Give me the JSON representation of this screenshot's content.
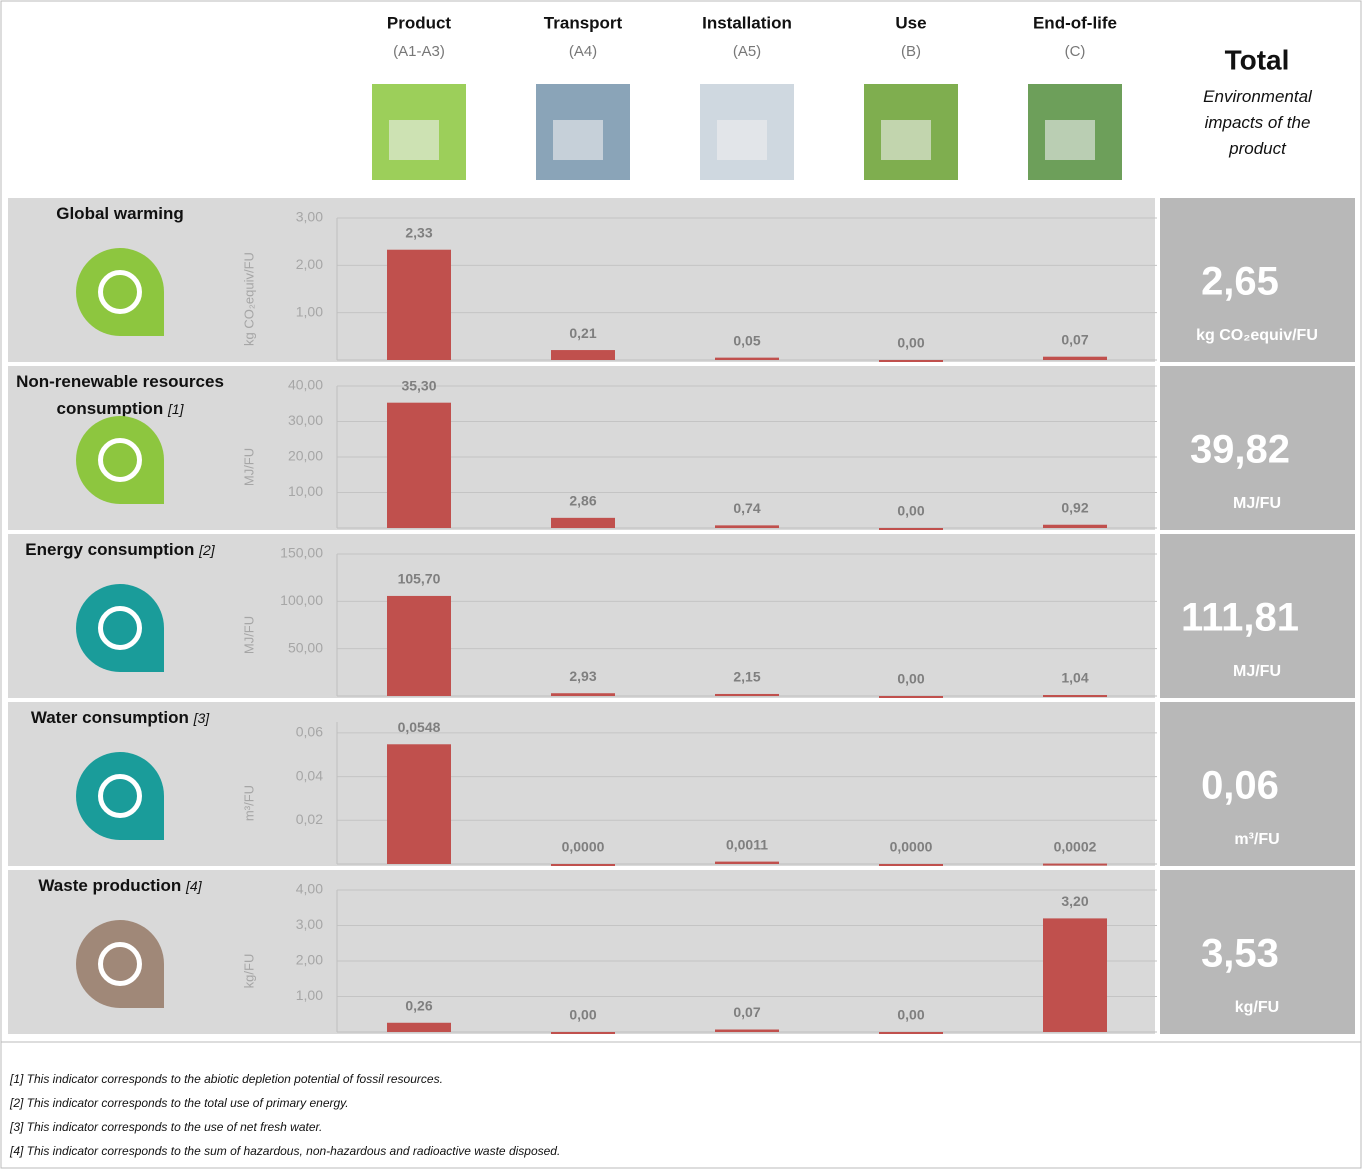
{
  "header": {
    "stages": [
      {
        "name": "Product",
        "code": "(A1-A3)"
      },
      {
        "name": "Transport",
        "code": "(A4)"
      },
      {
        "name": "Installation",
        "code": "(A5)"
      },
      {
        "name": "Use",
        "code": "(B)"
      },
      {
        "name": "End-of-life",
        "code": "(C)"
      }
    ],
    "total_title": "Total",
    "total_subtitle": "Environmental impacts of the product"
  },
  "chart_data": [
    {
      "type": "bar",
      "title": "Global warming",
      "ylabel": "kg CO₂equiv/FU",
      "color": "#c0504d",
      "values": [
        2.33,
        0.21,
        0.05,
        0,
        0.07
      ],
      "value_labels": [
        "2,33",
        "0,21",
        "0,05",
        "0,00",
        "0,07"
      ],
      "ylim": [
        0,
        3
      ],
      "yticks": [
        {
          "value": 1,
          "label": "1,00"
        },
        {
          "value": 2,
          "label": "2,00"
        },
        {
          "value": 3,
          "label": "3,00"
        }
      ],
      "total": "2,65",
      "total_unit": "kg CO₂equiv/FU"
    },
    {
      "type": "bar",
      "title": "Non-renewable resources consumption",
      "note": "[1]",
      "ylabel": "MJ/FU",
      "color": "#c0504d",
      "values": [
        35.3,
        2.86,
        0.74,
        0,
        0.92
      ],
      "value_labels": [
        "35,30",
        "2,86",
        "0,74",
        "0,00",
        "0,92"
      ],
      "ylim": [
        0,
        40
      ],
      "yticks": [
        {
          "value": 10,
          "label": "10,00"
        },
        {
          "value": 20,
          "label": "20,00"
        },
        {
          "value": 30,
          "label": "30,00"
        },
        {
          "value": 40,
          "label": "40,00"
        }
      ],
      "total": "39,82",
      "total_unit": "MJ/FU"
    },
    {
      "type": "bar",
      "title": "Energy consumption",
      "note": "[2]",
      "ylabel": "MJ/FU",
      "color": "#c0504d",
      "values": [
        105.7,
        2.93,
        2.15,
        0,
        1.04
      ],
      "value_labels": [
        "105,70",
        "2,93",
        "2,15",
        "0,00",
        "1,04"
      ],
      "ylim": [
        0,
        150
      ],
      "yticks": [
        {
          "value": 50,
          "label": "50,00"
        },
        {
          "value": 100,
          "label": "100,00"
        },
        {
          "value": 150,
          "label": "150,00"
        }
      ],
      "total": "111,81",
      "total_unit": "MJ/FU"
    },
    {
      "type": "bar",
      "title": "Water consumption",
      "note": "[3]",
      "ylabel": "m³/FU",
      "color": "#c0504d",
      "values": [
        0.0548,
        0,
        0.0011,
        0,
        0.0002
      ],
      "value_labels": [
        "0,0548",
        "0,0000",
        "0,0011",
        "0,0000",
        "0,0002"
      ],
      "ylim": [
        0,
        0.065
      ],
      "yticks": [
        {
          "value": 0.02,
          "label": "0,02"
        },
        {
          "value": 0.04,
          "label": "0,04"
        },
        {
          "value": 0.06,
          "label": "0,06"
        }
      ],
      "total": "0,06",
      "total_unit": "m³/FU"
    },
    {
      "type": "bar",
      "title": "Waste production",
      "note": "[4]",
      "ylabel": "kg/FU",
      "color": "#c0504d",
      "values": [
        0.26,
        0,
        0.07,
        0,
        3.2
      ],
      "value_labels": [
        "0,26",
        "0,00",
        "0,07",
        "0,00",
        "3,20"
      ],
      "ylim": [
        0,
        4
      ],
      "yticks": [
        {
          "value": 1,
          "label": "1,00"
        },
        {
          "value": 2,
          "label": "2,00"
        },
        {
          "value": 3,
          "label": "3,00"
        },
        {
          "value": 4,
          "label": "4,00"
        }
      ],
      "total": "3,53",
      "total_unit": "kg/FU"
    }
  ],
  "footnotes": [
    "[1] This indicator corresponds to the abiotic depletion potential of fossil resources.",
    "[2] This indicator corresponds to the total use of primary energy.",
    "[3] This indicator corresponds to the use of net fresh water.",
    "[4] This indicator corresponds to the sum of hazardous, non-hazardous and radioactive waste disposed."
  ]
}
